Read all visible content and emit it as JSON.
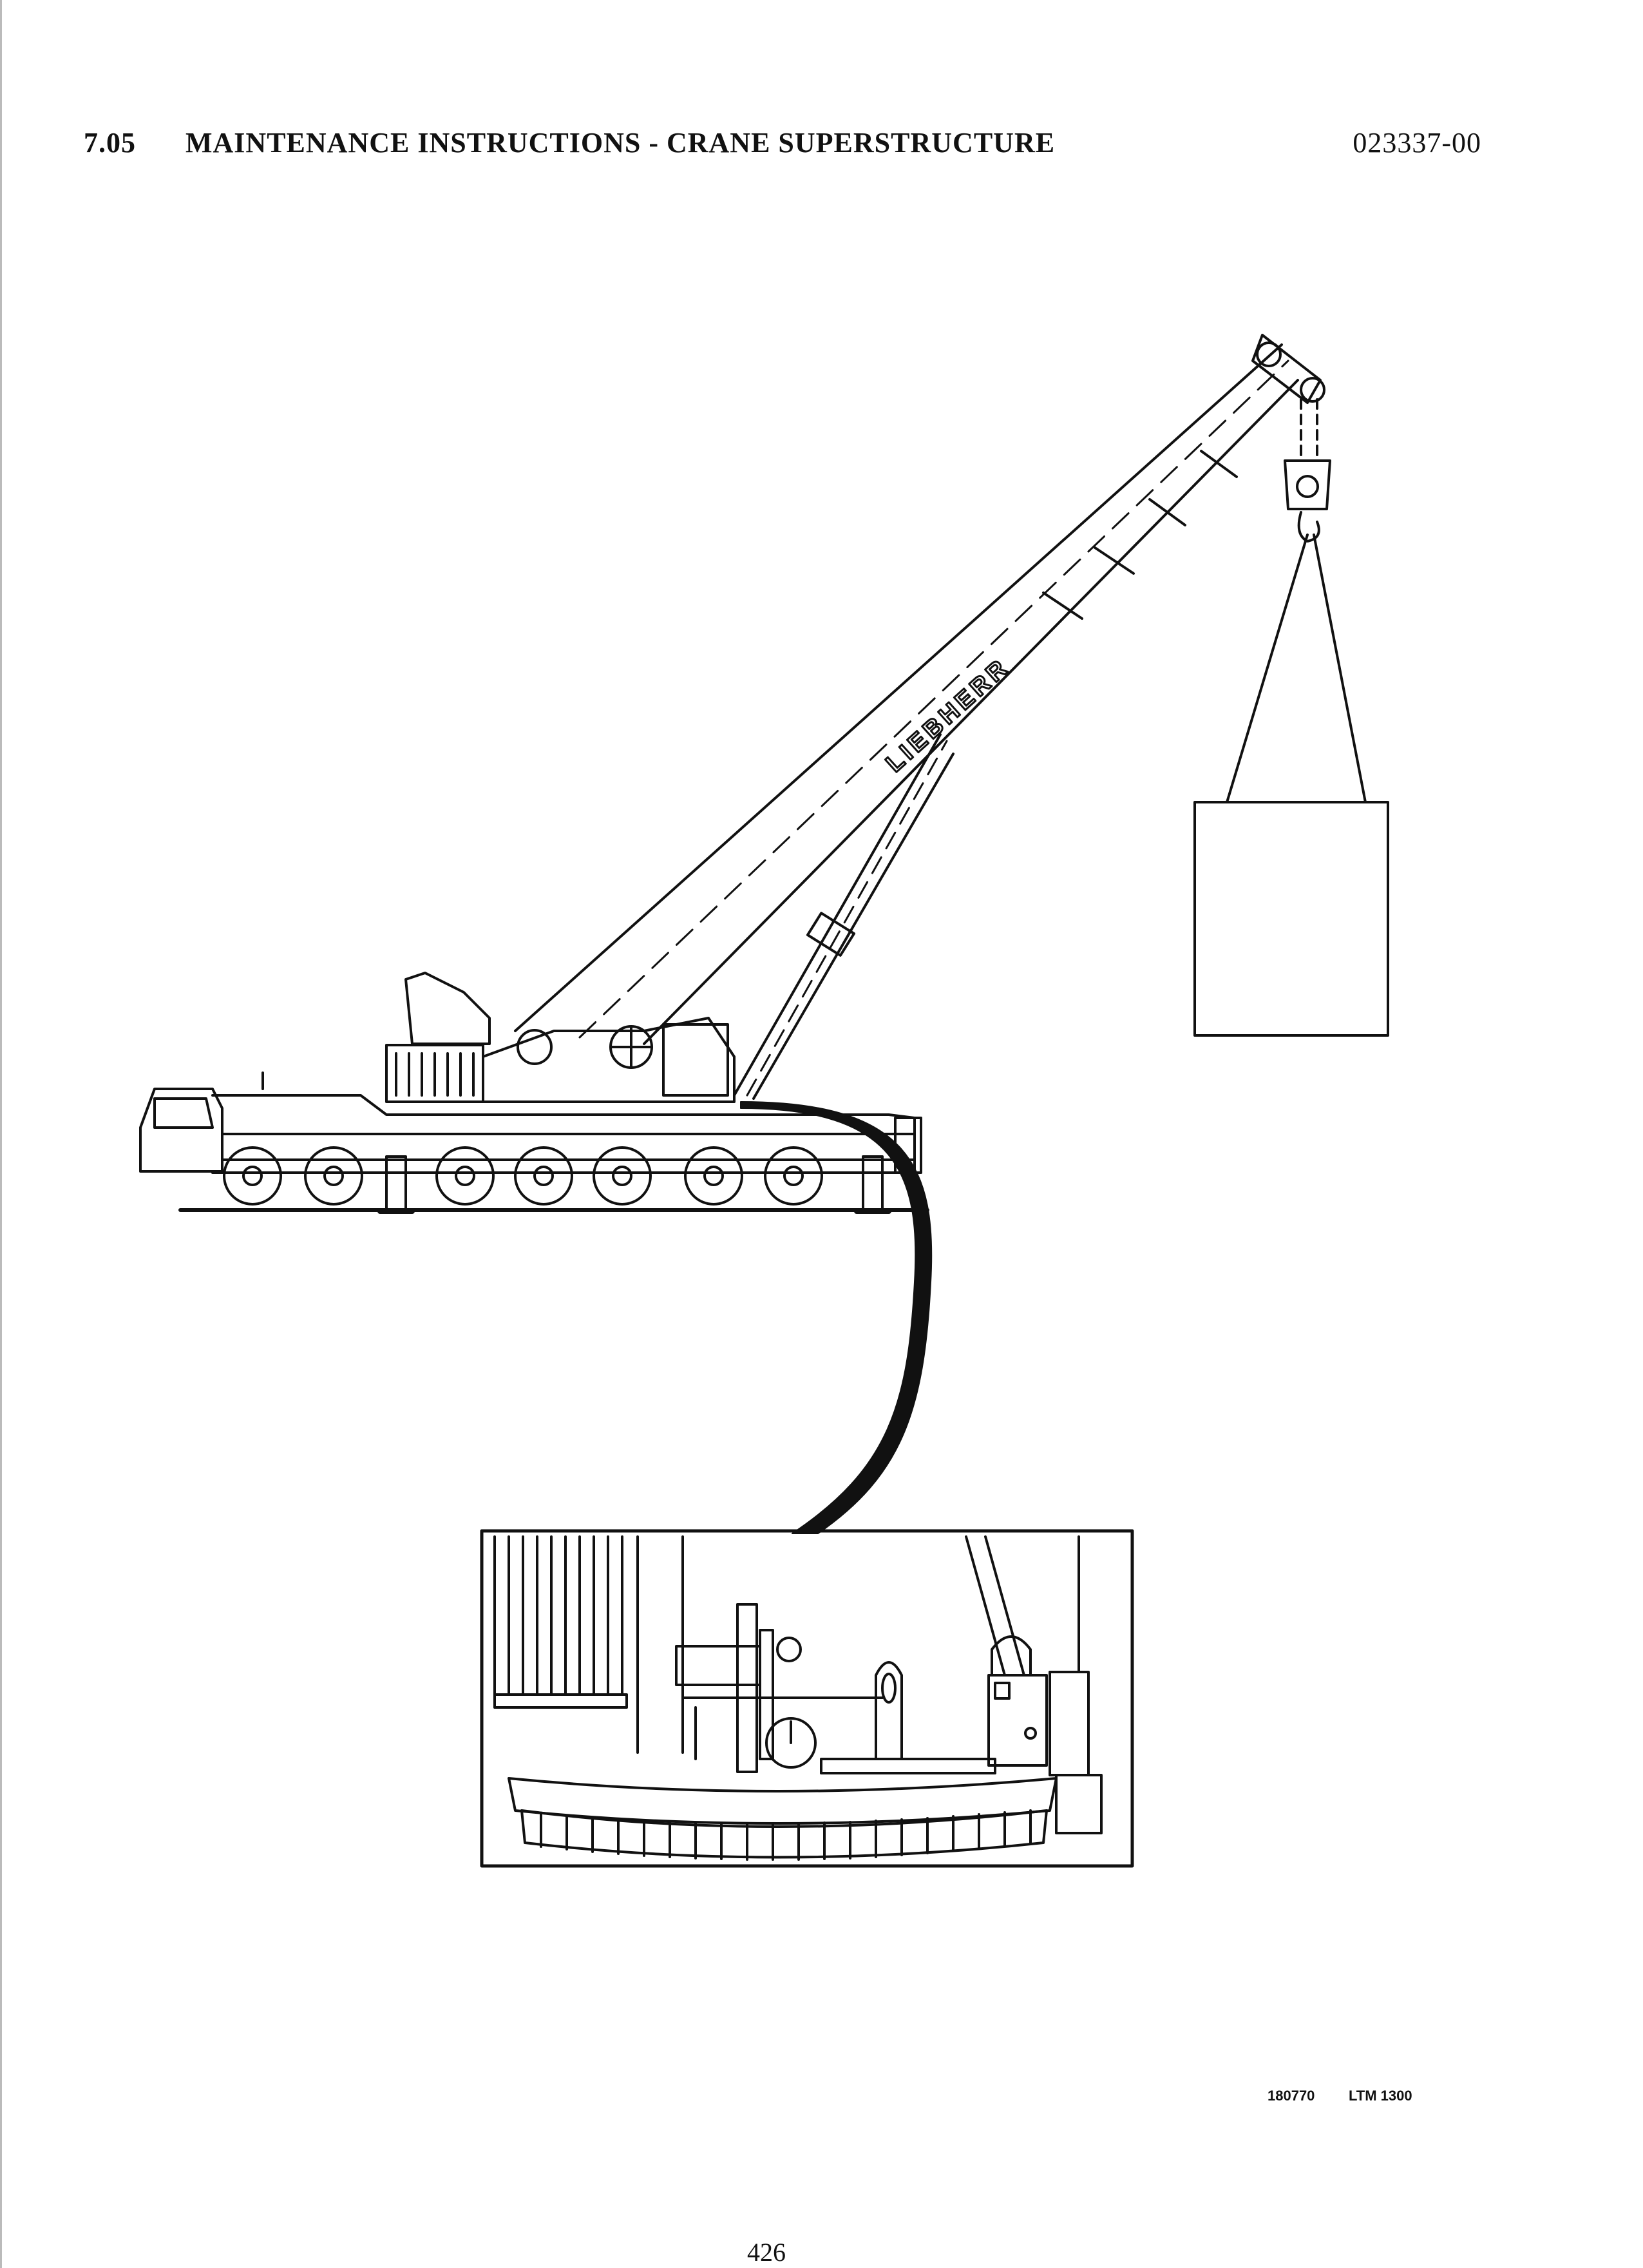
{
  "header": {
    "section_number": "7.05",
    "section_title": "MAINTENANCE INSTRUCTIONS - CRANE SUPERSTRUCTURE",
    "document_number": "023337-00"
  },
  "figure": {
    "boom_brand_text": "LIEBHERR",
    "drawing_code": "180770",
    "model": "LTM 1300"
  },
  "footer": {
    "page_number": "426"
  },
  "colors": {
    "ink": "#111111",
    "paper": "#ffffff"
  }
}
